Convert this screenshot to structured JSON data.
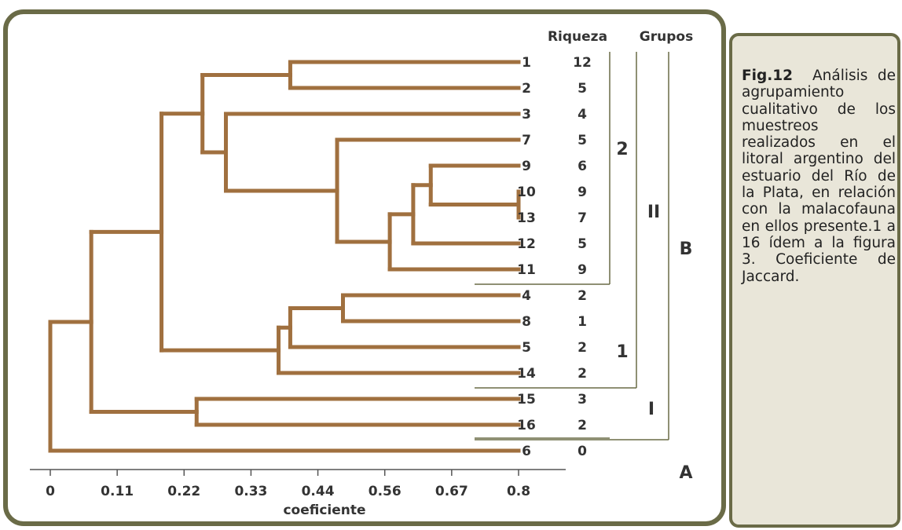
{
  "chart_data": {
    "type": "dendrogram",
    "xlabel": "coeficiente",
    "x_ticks": [
      "0",
      "0.11",
      "0.22",
      "0.33",
      "0.44",
      "0.56",
      "0.67",
      "0.8"
    ],
    "xlim": [
      0,
      0.8
    ],
    "column_headers": {
      "richness": "Riqueza",
      "groups": "Grupos"
    },
    "leaves": [
      {
        "sample": "1",
        "riqueza": "12"
      },
      {
        "sample": "2",
        "riqueza": "5"
      },
      {
        "sample": "3",
        "riqueza": "4"
      },
      {
        "sample": "7",
        "riqueza": "5"
      },
      {
        "sample": "9",
        "riqueza": "6"
      },
      {
        "sample": "10",
        "riqueza": "9"
      },
      {
        "sample": "13",
        "riqueza": "7"
      },
      {
        "sample": "12",
        "riqueza": "5"
      },
      {
        "sample": "11",
        "riqueza": "9"
      },
      {
        "sample": "4",
        "riqueza": "2"
      },
      {
        "sample": "8",
        "riqueza": "1"
      },
      {
        "sample": "5",
        "riqueza": "2"
      },
      {
        "sample": "14",
        "riqueza": "2"
      },
      {
        "sample": "15",
        "riqueza": "3"
      },
      {
        "sample": "16",
        "riqueza": "2"
      },
      {
        "sample": "6",
        "riqueza": "0"
      }
    ],
    "merges": [
      {
        "members": [
          "10",
          "13"
        ],
        "coef": 0.8
      },
      {
        "members": [
          "9",
          "10-13"
        ],
        "coef": 0.65
      },
      {
        "members": [
          "9-10-13",
          "12"
        ],
        "coef": 0.62
      },
      {
        "members": [
          "9-10-13-12",
          "11"
        ],
        "coef": 0.58
      },
      {
        "members": [
          "7",
          "9-10-13-12-11"
        ],
        "coef": 0.49
      },
      {
        "members": [
          "3",
          "7-…-11"
        ],
        "coef": 0.3
      },
      {
        "members": [
          "1",
          "2"
        ],
        "coef": 0.41
      },
      {
        "members": [
          "1-2",
          "3-…-11"
        ],
        "coef": 0.26
      },
      {
        "members": [
          "4",
          "8"
        ],
        "coef": 0.5
      },
      {
        "members": [
          "4-8",
          "5"
        ],
        "coef": 0.41
      },
      {
        "members": [
          "4-8-5",
          "14"
        ],
        "coef": 0.39
      },
      {
        "members": [
          "1-…-11",
          "4-8-5-14"
        ],
        "coef": 0.19
      },
      {
        "members": [
          "15",
          "16"
        ],
        "coef": 0.25
      },
      {
        "members": [
          "1-…-14",
          "15-16"
        ],
        "coef": 0.07
      },
      {
        "members": [
          "1-…-16",
          "6"
        ],
        "coef": 0.0
      }
    ],
    "group_labels": {
      "g2": "2",
      "g1": "1",
      "gII": "II",
      "gI": "I",
      "gB": "B",
      "gA": "A"
    },
    "branch_color": "#a0703f",
    "bracket_color": "#6a6b47"
  },
  "caption": {
    "label": "Fig.12",
    "text": "Análisis de agrupamiento cualitativo de los muestreos realizados en el litoral argentino del estuario del Río de la Plata, en relación con la malacofauna en ellos presente.1 a 16 ídem a la figura 3. Coeficiente de Jaccard."
  }
}
